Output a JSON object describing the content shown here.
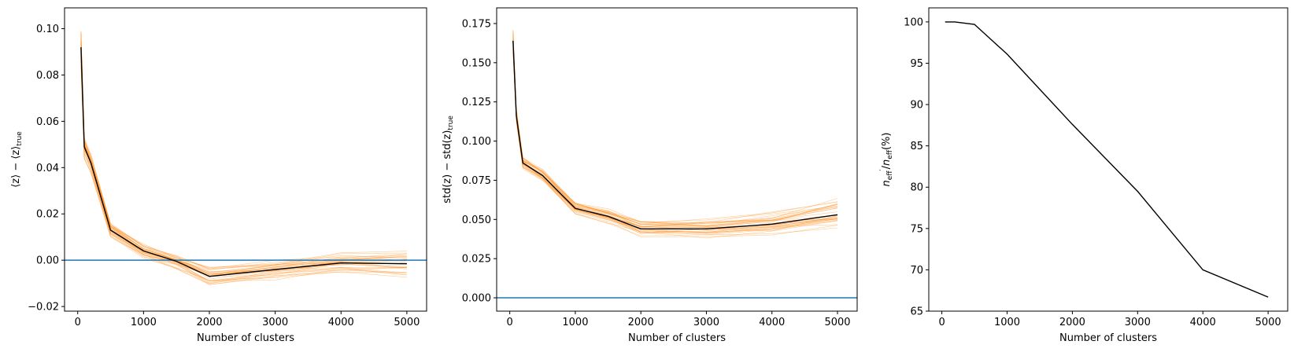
{
  "colors": {
    "realization": "#ff8c1a",
    "mean": "#000000",
    "reference": "#1f77b4"
  },
  "chart_data": [
    {
      "type": "line",
      "xlabel": "Number of clusters",
      "ylabel": "⟨z⟩ − ⟨z⟩_true",
      "ylabel_main": "⟨z⟩ − ⟨z⟩",
      "ylabel_sub": "true",
      "xlim": [
        -200,
        5300
      ],
      "ylim": [
        -0.022,
        0.109
      ],
      "xticks": [
        0,
        1000,
        2000,
        3000,
        4000,
        5000
      ],
      "xtick_labels": [
        "0",
        "1000",
        "2000",
        "3000",
        "4000",
        "5000"
      ],
      "yticks": [
        -0.02,
        0.0,
        0.02,
        0.04,
        0.06,
        0.08,
        0.1
      ],
      "ytick_labels": [
        "−0.02",
        "0.00",
        "0.02",
        "0.04",
        "0.06",
        "0.08",
        "0.10"
      ],
      "reference_y": 0.0,
      "x": [
        50,
        100,
        200,
        500,
        1000,
        1500,
        2000,
        3000,
        4000,
        5000
      ],
      "mean": [
        0.092,
        0.049,
        0.042,
        0.013,
        0.004,
        -0.0005,
        -0.007,
        -0.004,
        -0.0012,
        -0.0015
      ],
      "realization_spread": [
        0.009,
        0.005,
        0.004,
        0.003,
        0.003,
        0.003,
        0.004,
        0.004,
        0.005,
        0.0055
      ],
      "realization_count": 32
    },
    {
      "type": "line",
      "xlabel": "Number of clusters",
      "ylabel": "std(z) − std(z)_true",
      "ylabel_main": "std(z) − std(z)",
      "ylabel_sub": "true",
      "xlim": [
        -200,
        5300
      ],
      "ylim": [
        -0.0085,
        0.185
      ],
      "xticks": [
        0,
        1000,
        2000,
        3000,
        4000,
        5000
      ],
      "xtick_labels": [
        "0",
        "1000",
        "2000",
        "3000",
        "4000",
        "5000"
      ],
      "yticks": [
        0.0,
        0.025,
        0.05,
        0.075,
        0.1,
        0.125,
        0.15,
        0.175
      ],
      "ytick_labels": [
        "0.000",
        "0.025",
        "0.050",
        "0.075",
        "0.100",
        "0.125",
        "0.150",
        "0.175"
      ],
      "reference_y": 0.0,
      "x": [
        50,
        100,
        200,
        500,
        1000,
        1500,
        2000,
        3000,
        4000,
        5000
      ],
      "mean": [
        0.164,
        0.116,
        0.086,
        0.078,
        0.057,
        0.052,
        0.044,
        0.044,
        0.047,
        0.053
      ],
      "realization_spread": [
        0.008,
        0.005,
        0.004,
        0.004,
        0.004,
        0.005,
        0.006,
        0.007,
        0.008,
        0.01
      ],
      "realization_count": 32
    },
    {
      "type": "line",
      "xlabel": "Number of clusters",
      "ylabel": "n′_eff / n_eff (%)",
      "xlim": [
        -200,
        5300
      ],
      "ylim": [
        65,
        101.7
      ],
      "xticks": [
        0,
        1000,
        2000,
        3000,
        4000,
        5000
      ],
      "xtick_labels": [
        "0",
        "1000",
        "2000",
        "3000",
        "4000",
        "5000"
      ],
      "yticks": [
        65,
        70,
        75,
        80,
        85,
        90,
        95,
        100
      ],
      "ytick_labels": [
        "65",
        "70",
        "75",
        "80",
        "85",
        "90",
        "95",
        "100"
      ],
      "x": [
        50,
        200,
        500,
        1000,
        2000,
        3000,
        4000,
        5000
      ],
      "mean": [
        100,
        100,
        99.7,
        96.1,
        87.6,
        79.5,
        70.0,
        66.7
      ]
    }
  ]
}
